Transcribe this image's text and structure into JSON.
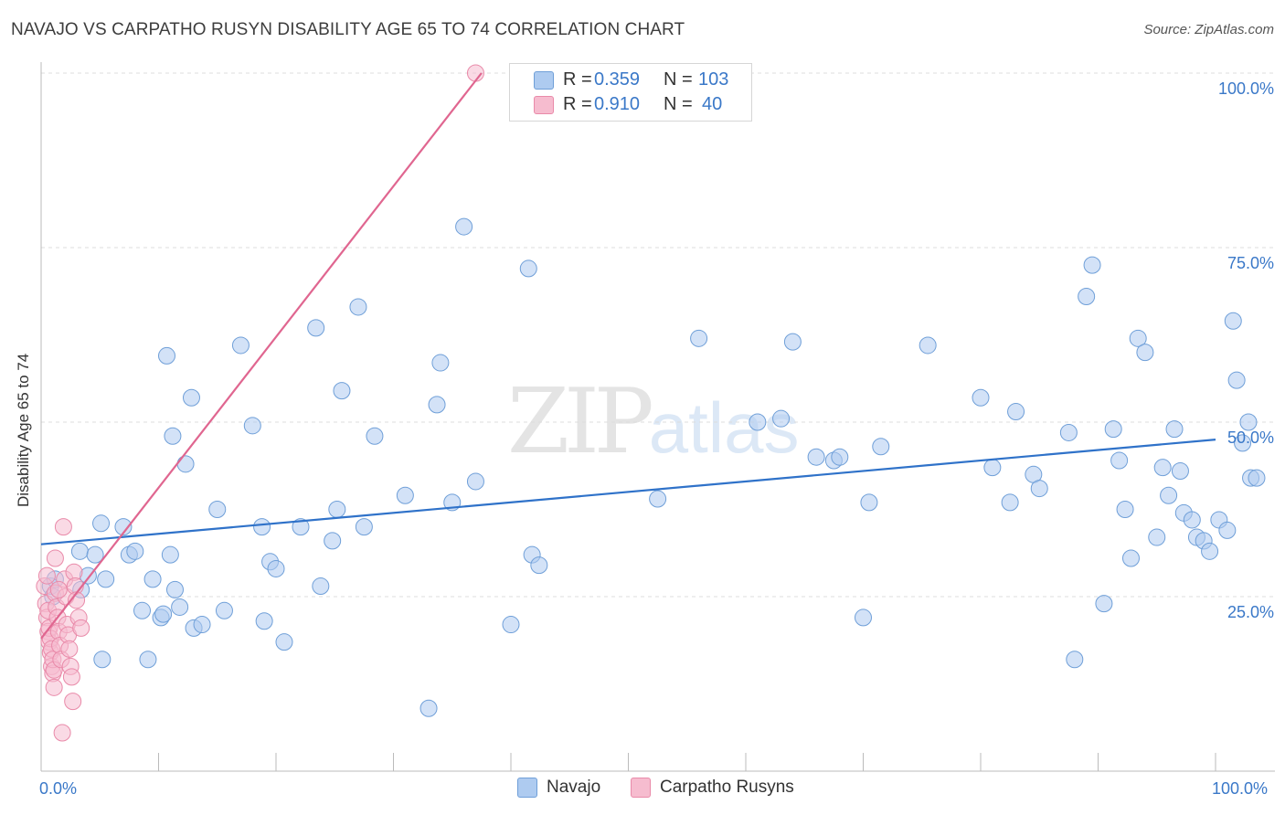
{
  "header": {
    "title": "NAVAJO VS CARPATHO RUSYN DISABILITY AGE 65 TO 74 CORRELATION CHART",
    "source": "Source: ZipAtlas.com"
  },
  "watermark": {
    "zip": "ZIP",
    "atlas": "atlas"
  },
  "legend": {
    "navajo": {
      "r_label": "R =",
      "r_value": "0.359",
      "n_label": "N =",
      "n_value": "103"
    },
    "carpatho": {
      "r_label": "R =",
      "r_value": "0.910",
      "n_label": "N =",
      "n_value": "40"
    }
  },
  "bottom_legend": {
    "navajo": "Navajo",
    "carpatho": "Carpatho Rusyns"
  },
  "colors": {
    "navajo_fill": "#aecbf0",
    "navajo_stroke": "#6f9fd8",
    "navajo_line": "#2f72c9",
    "carpatho_fill": "#f6bccf",
    "carpatho_stroke": "#e98aa9",
    "carpatho_line": "#e06690",
    "grid": "#dcdcdc",
    "tick_text": "#3a78c8"
  },
  "chart_data": {
    "type": "scatter",
    "title": "NAVAJO VS CARPATHO RUSYN DISABILITY AGE 65 TO 74 CORRELATION CHART",
    "xlabel": "",
    "ylabel": "Disability Age 65 to 74",
    "xlim": [
      0,
      100
    ],
    "ylim": [
      0,
      100
    ],
    "x_tick_labels": [
      "0.0%",
      "100.0%"
    ],
    "y_tick_labels": [
      {
        "value": 100,
        "label": "100.0%"
      },
      {
        "value": 75,
        "label": "75.0%"
      },
      {
        "value": 50,
        "label": "50.0%"
      },
      {
        "value": 25,
        "label": "25.0%"
      }
    ],
    "series": [
      {
        "name": "Navajo",
        "R": 0.359,
        "N": 103,
        "trend": {
          "x": [
            0,
            100
          ],
          "y": [
            32.5,
            47.5
          ]
        },
        "points": [
          [
            0.8,
            26.5
          ],
          [
            1.2,
            27.5
          ],
          [
            1.0,
            25.0
          ],
          [
            3.3,
            31.5
          ],
          [
            3.4,
            26.0
          ],
          [
            4.0,
            28.0
          ],
          [
            4.6,
            31.0
          ],
          [
            5.1,
            35.5
          ],
          [
            5.2,
            16.0
          ],
          [
            5.5,
            27.5
          ],
          [
            7.0,
            35.0
          ],
          [
            7.5,
            31.0
          ],
          [
            8.0,
            31.5
          ],
          [
            8.6,
            23.0
          ],
          [
            9.1,
            16.0
          ],
          [
            9.5,
            27.5
          ],
          [
            10.2,
            22.0
          ],
          [
            10.4,
            22.5
          ],
          [
            10.7,
            59.5
          ],
          [
            11.0,
            31.0
          ],
          [
            11.2,
            48.0
          ],
          [
            11.4,
            26.0
          ],
          [
            11.8,
            23.5
          ],
          [
            12.3,
            44.0
          ],
          [
            12.8,
            53.5
          ],
          [
            13.0,
            20.5
          ],
          [
            13.7,
            21.0
          ],
          [
            15.0,
            37.5
          ],
          [
            15.6,
            23.0
          ],
          [
            17.0,
            61.0
          ],
          [
            18.0,
            49.5
          ],
          [
            18.8,
            35.0
          ],
          [
            19.0,
            21.5
          ],
          [
            19.5,
            30.0
          ],
          [
            20.0,
            29.0
          ],
          [
            20.7,
            18.5
          ],
          [
            22.1,
            35.0
          ],
          [
            23.4,
            63.5
          ],
          [
            23.8,
            26.5
          ],
          [
            24.8,
            33.0
          ],
          [
            25.2,
            37.5
          ],
          [
            25.6,
            54.5
          ],
          [
            27.0,
            66.5
          ],
          [
            27.5,
            35.0
          ],
          [
            28.4,
            48.0
          ],
          [
            31.0,
            39.5
          ],
          [
            33.0,
            9.0
          ],
          [
            33.7,
            52.5
          ],
          [
            34.0,
            58.5
          ],
          [
            35.0,
            38.5
          ],
          [
            36.0,
            78.0
          ],
          [
            37.0,
            41.5
          ],
          [
            40.0,
            21.0
          ],
          [
            41.5,
            72.0
          ],
          [
            41.8,
            31.0
          ],
          [
            42.4,
            29.5
          ],
          [
            52.5,
            39.0
          ],
          [
            56.0,
            62.0
          ],
          [
            61.0,
            50.0
          ],
          [
            63.0,
            50.5
          ],
          [
            64.0,
            61.5
          ],
          [
            66.0,
            45.0
          ],
          [
            67.5,
            44.5
          ],
          [
            68.0,
            45.0
          ],
          [
            70.0,
            22.0
          ],
          [
            70.5,
            38.5
          ],
          [
            71.5,
            46.5
          ],
          [
            75.5,
            61.0
          ],
          [
            80.0,
            53.5
          ],
          [
            81.0,
            43.5
          ],
          [
            82.5,
            38.5
          ],
          [
            83.0,
            51.5
          ],
          [
            84.5,
            42.5
          ],
          [
            85.0,
            40.5
          ],
          [
            87.5,
            48.5
          ],
          [
            88.0,
            16.0
          ],
          [
            89.0,
            68.0
          ],
          [
            89.5,
            72.5
          ],
          [
            90.5,
            24.0
          ],
          [
            91.3,
            49.0
          ],
          [
            91.8,
            44.5
          ],
          [
            92.3,
            37.5
          ],
          [
            92.8,
            30.5
          ],
          [
            93.4,
            62.0
          ],
          [
            94.0,
            60.0
          ],
          [
            95.0,
            33.5
          ],
          [
            95.5,
            43.5
          ],
          [
            96.0,
            39.5
          ],
          [
            96.5,
            49.0
          ],
          [
            97.0,
            43.0
          ],
          [
            97.3,
            37.0
          ],
          [
            98.0,
            36.0
          ],
          [
            98.4,
            33.5
          ],
          [
            99.0,
            33.0
          ],
          [
            99.5,
            31.5
          ],
          [
            100.3,
            36.0
          ],
          [
            101.0,
            34.5
          ],
          [
            101.5,
            64.5
          ],
          [
            101.8,
            56.0
          ],
          [
            102.3,
            47.0
          ],
          [
            102.8,
            50.0
          ],
          [
            103.0,
            42.0
          ],
          [
            103.5,
            42.0
          ]
        ]
      },
      {
        "name": "Carpatho Rusyns",
        "R": 0.91,
        "N": 40,
        "trend": {
          "x": [
            0,
            37.5
          ],
          "y": [
            19.0,
            100.0
          ]
        },
        "points": [
          [
            0.3,
            26.5
          ],
          [
            0.4,
            24.0
          ],
          [
            0.5,
            22.0
          ],
          [
            0.6,
            20.0
          ],
          [
            0.7,
            18.5
          ],
          [
            0.8,
            17.0
          ],
          [
            0.9,
            15.0
          ],
          [
            1.0,
            14.0
          ],
          [
            1.1,
            12.0
          ],
          [
            1.2,
            30.5
          ],
          [
            0.5,
            28.0
          ],
          [
            0.6,
            23.0
          ],
          [
            0.7,
            20.5
          ],
          [
            0.8,
            19.0
          ],
          [
            0.9,
            17.5
          ],
          [
            1.0,
            16.0
          ],
          [
            1.1,
            14.5
          ],
          [
            1.2,
            25.5
          ],
          [
            1.3,
            23.5
          ],
          [
            1.4,
            22.0
          ],
          [
            1.5,
            20.0
          ],
          [
            1.6,
            18.0
          ],
          [
            1.7,
            16.0
          ],
          [
            1.8,
            5.5
          ],
          [
            1.9,
            35.0
          ],
          [
            2.0,
            27.5
          ],
          [
            2.1,
            25.0
          ],
          [
            2.2,
            21.0
          ],
          [
            2.3,
            19.5
          ],
          [
            2.4,
            17.5
          ],
          [
            2.5,
            15.0
          ],
          [
            2.6,
            13.5
          ],
          [
            2.7,
            10.0
          ],
          [
            2.8,
            28.5
          ],
          [
            2.9,
            26.5
          ],
          [
            3.0,
            24.5
          ],
          [
            3.2,
            22.0
          ],
          [
            3.4,
            20.5
          ],
          [
            37.0,
            100.0
          ],
          [
            1.5,
            26.0
          ]
        ]
      }
    ]
  }
}
